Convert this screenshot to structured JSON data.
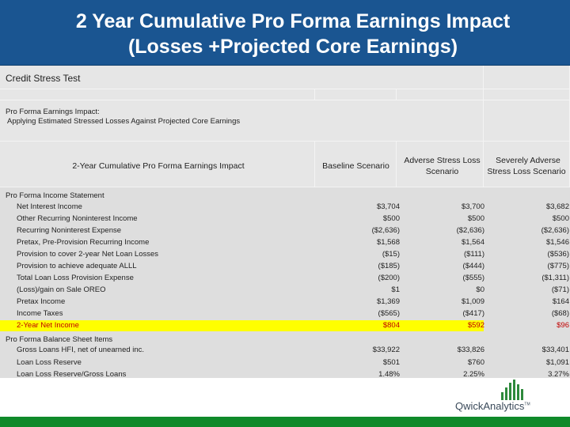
{
  "title": {
    "line1": "2 Year Cumulative Pro Forma Earnings Impact",
    "line2": "(Losses +Projected Core Earnings)"
  },
  "sheet": {
    "section1": "Credit Stress Test",
    "section2_line1": "Pro Forma Earnings Impact:",
    "section2_line2": "Applying Estimated Stressed Losses Against Projected Core Earnings",
    "header_label": "2-Year Cumulative Pro Forma Earnings Impact",
    "col_baseline": "Baseline Scenario",
    "col_adverse_1": "Adverse Stress Loss",
    "col_adverse_2": "Scenario",
    "col_severe_1": "Severely Adverse",
    "col_severe_2": "Stress Loss Scenario",
    "income_heading": "Pro Forma Income Statement",
    "balance_heading": "Pro Forma Balance Sheet Items",
    "income_rows": [
      {
        "label": "Net Interest Income",
        "baseline": "$3,704",
        "adverse": "$3,700",
        "severe": "$3,682"
      },
      {
        "label": "Other Recurring Noninterest Income",
        "baseline": "$500",
        "adverse": "$500",
        "severe": "$500"
      },
      {
        "label": "Recurring Noninterest Expense",
        "baseline": "($2,636)",
        "adverse": "($2,636)",
        "severe": "($2,636)"
      },
      {
        "label": "Pretax, Pre-Provision Recurring Income",
        "baseline": "$1,568",
        "adverse": "$1,564",
        "severe": "$1,546"
      },
      {
        "label": "Provision to cover 2-year Net Loan Losses",
        "baseline": "($15)",
        "adverse": "($111)",
        "severe": "($536)"
      },
      {
        "label": "Provision to achieve adequate ALLL",
        "baseline": "($185)",
        "adverse": "($444)",
        "severe": "($775)"
      },
      {
        "label": "Total Loan Loss Provision Expense",
        "baseline": "($200)",
        "adverse": "($555)",
        "severe": "($1,311)"
      },
      {
        "label": "(Loss)/gain on Sale OREO",
        "baseline": "$1",
        "adverse": "$0",
        "severe": "($71)"
      },
      {
        "label": "Pretax Income",
        "baseline": "$1,369",
        "adverse": "$1,009",
        "severe": "$164"
      },
      {
        "label": "Income Taxes",
        "baseline": "($565)",
        "adverse": "($417)",
        "severe": "($68)"
      },
      {
        "label": "2-Year Net Income",
        "baseline": "$804",
        "adverse": "$592",
        "severe": "$96"
      }
    ],
    "balance_rows": [
      {
        "label": "Gross Loans HFI, net of unearned inc.",
        "baseline": "$33,922",
        "adverse": "$33,826",
        "severe": "$33,401"
      },
      {
        "label": "Loan Loss Reserve",
        "baseline": "$501",
        "adverse": "$760",
        "severe": "$1,091"
      },
      {
        "label": "Loan Loss Reserve/Gross Loans",
        "baseline": "1.48%",
        "adverse": "2.25%",
        "severe": "3.27%"
      }
    ]
  },
  "logo": {
    "text": "QwickAnalytics",
    "tm": "TM"
  },
  "colors": {
    "title_bg": "#1a5591",
    "highlight": "#ffff00",
    "net_income_text": "#c00000",
    "footer": "#0f8a2a",
    "logo_green": "#2e8a3c"
  }
}
